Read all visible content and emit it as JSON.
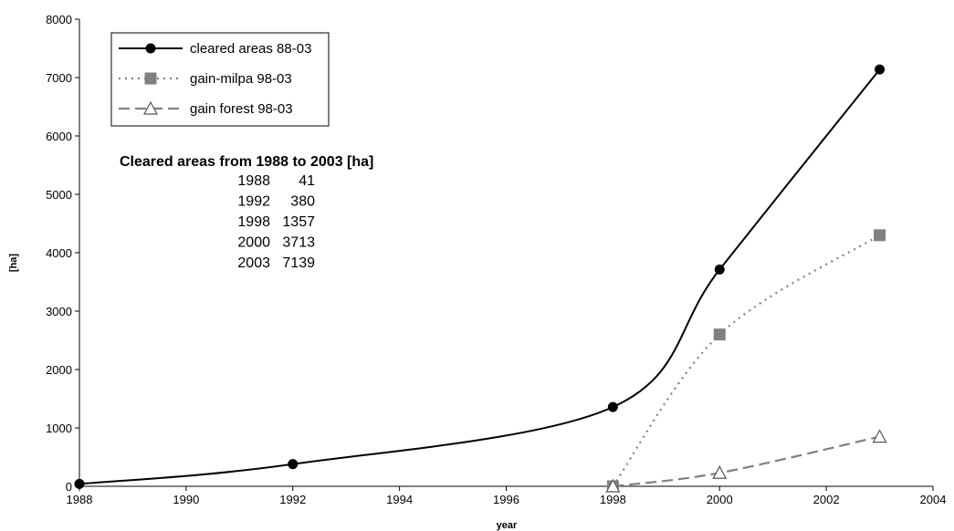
{
  "chart_data": {
    "type": "line",
    "xlabel": "year",
    "ylabel": "[ha]",
    "xlim": [
      1988,
      2004
    ],
    "ylim": [
      0,
      8000
    ],
    "x_ticks": [
      1988,
      1990,
      1992,
      1994,
      1996,
      1998,
      2000,
      2002,
      2004
    ],
    "y_ticks": [
      0,
      1000,
      2000,
      3000,
      4000,
      5000,
      6000,
      7000,
      8000
    ],
    "grid": false,
    "legend_position": "top-left",
    "series": [
      {
        "name": "cleared areas 88-03",
        "style": "solid",
        "marker": "circle",
        "color": "#000000",
        "x": [
          1988,
          1992,
          1998,
          2000,
          2003
        ],
        "y": [
          41,
          380,
          1357,
          3713,
          7139
        ]
      },
      {
        "name": "gain-milpa 98-03",
        "style": "dotted",
        "marker": "square",
        "color": "#808080",
        "x": [
          1998,
          2000,
          2003
        ],
        "y": [
          0,
          2600,
          4300
        ]
      },
      {
        "name": "gain forest 98-03",
        "style": "dashed",
        "marker": "triangle",
        "color": "#808080",
        "x": [
          1998,
          2000,
          2003
        ],
        "y": [
          0,
          230,
          850
        ]
      }
    ],
    "annotation": {
      "title": "Cleared areas from 1988 to 2003 [ha]",
      "rows": [
        {
          "year": "1988",
          "value": "41"
        },
        {
          "year": "1992",
          "value": "380"
        },
        {
          "year": "1998",
          "value": "1357"
        },
        {
          "year": "2000",
          "value": "3713"
        },
        {
          "year": "2003",
          "value": "7139"
        }
      ]
    }
  }
}
